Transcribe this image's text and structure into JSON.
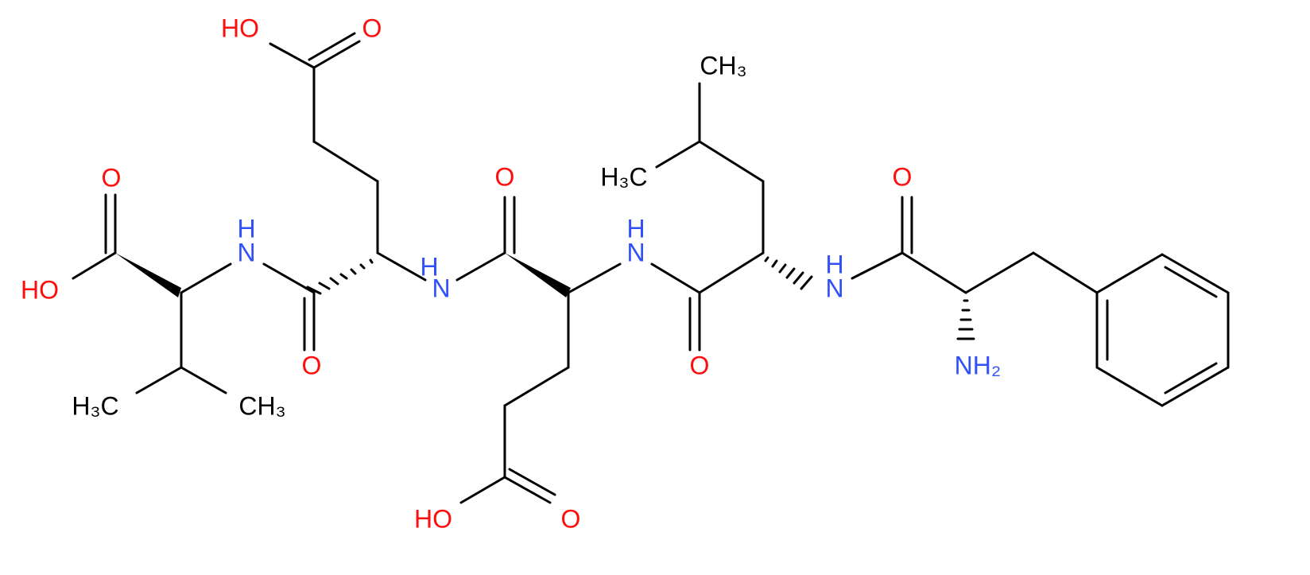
{
  "atoms": [
    {
      "label": "O",
      "color": "#ff0d0d"
    },
    {
      "label": "HO",
      "color": "#ff0d0d"
    },
    {
      "label": "H",
      "color": "#3050f8"
    },
    {
      "label": "N",
      "color": "#3050f8"
    },
    {
      "label": "O",
      "color": "#ff0d0d"
    },
    {
      "label": "HO",
      "color": "#ff0d0d"
    },
    {
      "label": "O",
      "color": "#ff0d0d"
    },
    {
      "label": "N",
      "color": "#3050f8"
    },
    {
      "label": "O",
      "color": "#ff0d0d"
    },
    {
      "label": "HO",
      "color": "#ff0d0d"
    },
    {
      "label": "O",
      "color": "#ff0d0d"
    },
    {
      "label": "H",
      "color": "#3050f8"
    },
    {
      "label": "N",
      "color": "#3050f8"
    },
    {
      "label": "O",
      "color": "#ff0d0d"
    },
    {
      "label": "CH₃",
      "color": "#000000"
    },
    {
      "label": "H₃C",
      "color": "#000000"
    },
    {
      "label": "H",
      "color": "#3050f8"
    },
    {
      "label": "N",
      "color": "#3050f8"
    },
    {
      "label": "O",
      "color": "#ff0d0d"
    },
    {
      "label": "NH₂",
      "color": "#3050f8"
    },
    {
      "label": "H₃C",
      "color": "#000000"
    },
    {
      "label": "CH₃",
      "color": "#000000"
    },
    {
      "label": "H",
      "color": "#3050f8"
    }
  ]
}
